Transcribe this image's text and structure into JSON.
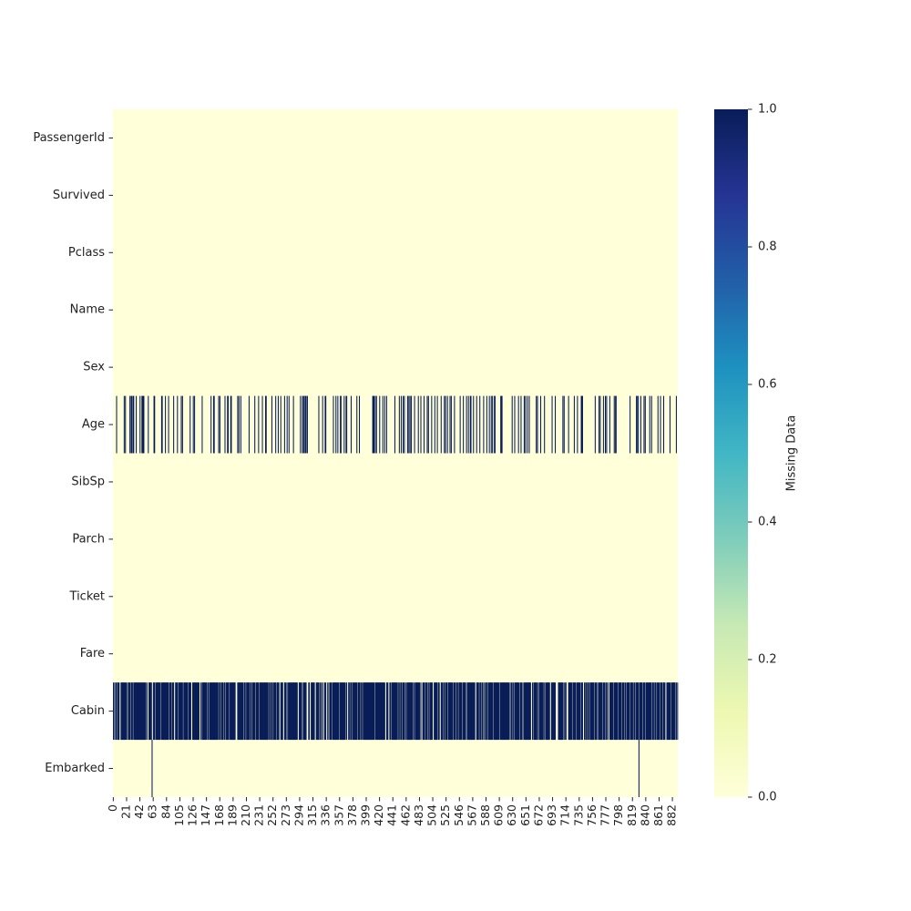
{
  "chart_data": {
    "type": "heatmap",
    "n_rows": 891,
    "rows": [
      "PassengerId",
      "Survived",
      "Pclass",
      "Name",
      "Sex",
      "Age",
      "SibSp",
      "Parch",
      "Ticket",
      "Fare",
      "Cabin",
      "Embarked"
    ],
    "x_ticks": [
      "0",
      "21",
      "42",
      "63",
      "84",
      "105",
      "126",
      "147",
      "168",
      "189",
      "210",
      "231",
      "252",
      "273",
      "294",
      "315",
      "336",
      "357",
      "378",
      "399",
      "420",
      "441",
      "462",
      "483",
      "504",
      "525",
      "546",
      "567",
      "588",
      "609",
      "630",
      "651",
      "672",
      "693",
      "714",
      "735",
      "756",
      "777",
      "798",
      "819",
      "840",
      "861",
      "882"
    ],
    "missing_indices": {
      "Age": [
        5,
        17,
        19,
        26,
        28,
        29,
        31,
        32,
        36,
        42,
        45,
        46,
        47,
        48,
        55,
        64,
        65,
        76,
        77,
        82,
        87,
        95,
        101,
        107,
        109,
        121,
        126,
        128,
        140,
        154,
        158,
        159,
        166,
        168,
        176,
        180,
        181,
        185,
        186,
        196,
        198,
        201,
        214,
        223,
        229,
        235,
        240,
        241,
        250,
        256,
        260,
        264,
        270,
        274,
        277,
        284,
        295,
        298,
        300,
        301,
        303,
        304,
        306,
        324,
        330,
        334,
        335,
        347,
        351,
        354,
        358,
        359,
        364,
        367,
        368,
        375,
        384,
        388,
        409,
        410,
        411,
        413,
        415,
        420,
        425,
        428,
        431,
        444,
        451,
        454,
        457,
        459,
        464,
        466,
        468,
        470,
        475,
        481,
        485,
        490,
        495,
        497,
        502,
        507,
        511,
        517,
        522,
        524,
        527,
        531,
        533,
        538,
        547,
        552,
        557,
        560,
        563,
        564,
        568,
        573,
        578,
        584,
        589,
        593,
        596,
        598,
        601,
        602,
        611,
        612,
        613,
        629,
        633,
        639,
        643,
        648,
        650,
        653,
        656,
        667,
        669,
        674,
        680,
        692,
        697,
        709,
        711,
        718,
        727,
        732,
        738,
        739,
        740,
        760,
        766,
        768,
        773,
        776,
        778,
        783,
        790,
        792,
        793,
        815,
        825,
        826,
        828,
        832,
        837,
        839,
        846,
        849,
        859,
        863,
        868,
        878,
        888
      ],
      "Cabin_present": [
        1,
        3,
        6,
        10,
        11,
        21,
        23,
        27,
        31,
        52,
        54,
        55,
        61,
        62,
        66,
        75,
        88,
        92,
        96,
        97,
        102,
        110,
        118,
        123,
        124,
        136,
        137,
        139,
        148,
        151,
        166,
        170,
        174,
        177,
        183,
        193,
        194,
        195,
        205,
        209,
        215,
        218,
        224,
        230,
        245,
        248,
        252,
        257,
        262,
        263,
        268,
        269,
        273,
        275,
        291,
        292,
        297,
        299,
        305,
        306,
        307,
        310,
        311,
        318,
        319,
        325,
        327,
        329,
        331,
        332,
        336,
        337,
        339,
        341,
        345,
        356,
        366,
        369,
        370,
        373,
        377,
        385,
        390,
        393,
        412,
        429,
        430,
        434,
        435,
        438,
        449,
        452,
        456,
        460,
        462,
        473,
        475,
        484,
        486,
        487,
        492,
        496,
        498,
        504,
        505,
        512,
        515,
        516,
        520,
        523,
        527,
        536,
        540,
        544,
        550,
        556,
        558,
        571,
        572,
        577,
        581,
        583,
        585,
        587,
        591,
        599,
        609,
        625,
        627,
        630,
        632,
        641,
        645,
        647,
        659,
        660,
        662,
        669,
        671,
        679,
        681,
        689,
        690,
        698,
        699,
        700,
        701,
        710,
        712,
        715,
        716,
        717,
        724,
        730,
        737,
        741,
        742,
        745,
        748,
        751,
        759,
        763,
        765,
        772,
        776,
        779,
        781,
        782,
        789,
        796,
        802,
        806,
        809,
        815,
        820,
        823,
        829,
        835,
        839,
        849,
        853,
        857,
        862,
        867,
        871,
        872,
        879,
        887,
        889
      ],
      "Embarked": [
        61,
        829
      ]
    },
    "colorbar": {
      "label": "Missing Data",
      "ticks": [
        "0.0",
        "0.2",
        "0.4",
        "0.6",
        "0.8",
        "1.0"
      ],
      "range": [
        0,
        1
      ]
    },
    "colors": {
      "present": "#ffffd9",
      "missing": "#081d58"
    },
    "colormap": "YlGnBu",
    "title": "",
    "xlabel": "",
    "ylabel": ""
  }
}
